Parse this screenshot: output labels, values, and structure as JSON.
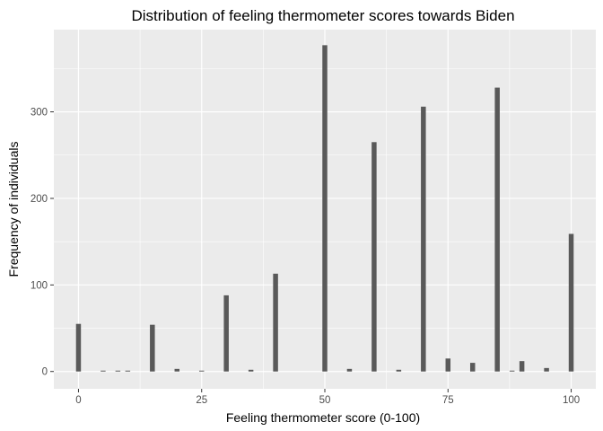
{
  "chart_data": {
    "type": "bar",
    "title": "Distribution of feeling thermometer scores towards Biden",
    "xlabel": "Feeling thermometer score (0-100)",
    "ylabel": "Frequency of individuals",
    "xlim": [
      -5,
      105
    ],
    "ylim": [
      -20,
      395
    ],
    "x_ticks": [
      0,
      25,
      50,
      75,
      100
    ],
    "y_ticks": [
      0,
      100,
      200,
      300
    ],
    "bar_width": 1,
    "grid": true,
    "legend": "none",
    "panel_color": "#ebebeb",
    "bar_color": "#595959",
    "x": [
      0,
      5,
      8,
      10,
      15,
      20,
      25,
      30,
      35,
      40,
      50,
      55,
      60,
      65,
      70,
      75,
      80,
      85,
      88,
      90,
      95,
      100
    ],
    "values": [
      55,
      1,
      1,
      1,
      54,
      3,
      1,
      88,
      2,
      113,
      377,
      3,
      265,
      2,
      306,
      15,
      10,
      328,
      1,
      12,
      4,
      159
    ]
  }
}
